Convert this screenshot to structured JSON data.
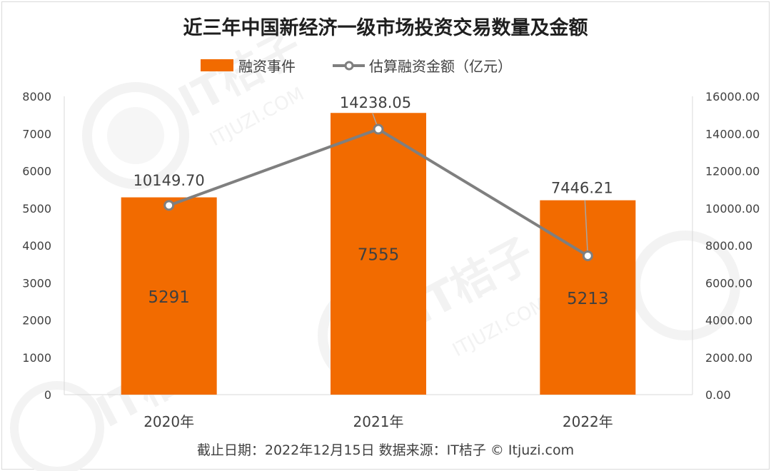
{
  "chart_data": {
    "type": "bar",
    "title": "近三年中国新经济一级市场投资交易数量及金额",
    "categories": [
      "2020年",
      "2021年",
      "2022年"
    ],
    "series": [
      {
        "name": "融资事件",
        "kind": "bar",
        "axis": "left",
        "color": "#f26b00",
        "values": [
          5291,
          7555,
          5213
        ],
        "labels": [
          "5291",
          "7555",
          "5213"
        ]
      },
      {
        "name": "估算融资金额（亿元）",
        "kind": "line",
        "axis": "right",
        "color": "#7f7f7f",
        "values": [
          10149.7,
          14238.05,
          7446.21
        ],
        "labels": [
          "10149.70",
          "14238.05",
          "7446.21"
        ]
      }
    ],
    "y_left": {
      "lim": [
        0,
        8000
      ],
      "ticks": [
        "0",
        "1000",
        "2000",
        "3000",
        "4000",
        "5000",
        "6000",
        "7000",
        "8000"
      ]
    },
    "y_right": {
      "lim": [
        0,
        16000
      ],
      "ticks": [
        "0.00",
        "2000.00",
        "4000.00",
        "6000.00",
        "8000.00",
        "10000.00",
        "12000.00",
        "14000.00",
        "16000.00"
      ]
    },
    "grid": false,
    "legend_position": "top-center"
  },
  "footer": "截止日期：2022年12月15日    数据来源：IT桔子 © Itjuzi.com",
  "watermark": {
    "brand": "IT桔子",
    "site": "ITJUZI.COM"
  }
}
